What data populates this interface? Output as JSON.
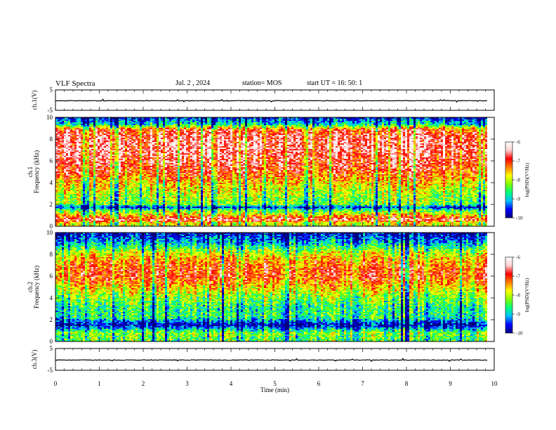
{
  "header": {
    "title": "VLF Spectra",
    "date": "Jul. 2 , 2024",
    "station": "station= MOS",
    "start": "start UT = 16: 50: 1"
  },
  "colorbar": {
    "label": "log(PSD)(V²/Hz)",
    "ticks": [
      "-6",
      "-7",
      "-8",
      "-9",
      "-10"
    ],
    "colors": [
      "#000080",
      "#0000ff",
      "#00bfff",
      "#00ff80",
      "#80ff00",
      "#ffff00",
      "#ff8000",
      "#ff0000",
      "#ffd0d0",
      "#ffffff"
    ]
  },
  "chart_data": [
    {
      "type": "line",
      "panel": "ch.1(V)",
      "ylabel": "ch.1(V)",
      "yticks": [
        "5",
        "-5"
      ],
      "ylim": [
        -5,
        5
      ],
      "x": [
        0,
        1,
        2,
        3,
        4,
        5,
        6,
        7,
        8,
        9,
        9.85
      ],
      "values": [
        -0.3,
        -0.3,
        -0.3,
        -0.3,
        -0.3,
        -0.3,
        -0.3,
        -0.3,
        -0.3,
        -0.3,
        -0.3
      ]
    },
    {
      "type": "heatmap",
      "panel": "ch.1 spectrogram",
      "ylabel": "ch.1 Frequency (kHz)",
      "ylabel_top": "ch.1",
      "ylabel_bottom": "Frequency (kHz)",
      "yticks": [
        "0",
        "2",
        "4",
        "6",
        "8",
        "10"
      ],
      "ylim": [
        0,
        10
      ],
      "xlim": [
        0,
        10
      ],
      "zlabel": "log(PSD)(V²/Hz)",
      "zlim": [
        -10,
        -6
      ],
      "profile_khz": [
        0.3,
        0.6,
        1.0,
        1.5,
        1.7,
        2.0,
        3.0,
        4.0,
        5.0,
        6.0,
        7.0,
        8.0,
        8.8,
        9.3,
        10
      ],
      "profile_log_psd": [
        -7.8,
        -6.6,
        -7.5,
        -8.5,
        -9.6,
        -8.3,
        -8.0,
        -7.6,
        -7.0,
        -6.8,
        -6.6,
        -6.6,
        -7.0,
        -8.8,
        -9.6
      ]
    },
    {
      "type": "heatmap",
      "panel": "ch.2 spectrogram",
      "ylabel": "ch.2 Frequency (kHz)",
      "ylabel_top": "ch.2",
      "ylabel_bottom": "Frequency (kHz)",
      "yticks": [
        "0",
        "2",
        "4",
        "6",
        "8",
        "10"
      ],
      "ylim": [
        0,
        10
      ],
      "xlim": [
        0,
        10
      ],
      "zlabel": "log(PSD)(V²/Hz)",
      "zlim": [
        -10,
        -6
      ],
      "profile_khz": [
        0.3,
        0.8,
        1.5,
        2.2,
        3.0,
        4.0,
        5.0,
        6.0,
        7.0,
        8.0,
        9.0,
        10
      ],
      "profile_log_psd": [
        -8.4,
        -8.2,
        -9.8,
        -8.6,
        -8.6,
        -8.2,
        -7.6,
        -7.0,
        -7.2,
        -7.8,
        -9.0,
        -9.8
      ]
    },
    {
      "type": "line",
      "panel": "ch.3(V)",
      "ylabel": "ch.3(V)",
      "yticks": [
        "5",
        "-5"
      ],
      "ylim": [
        -5,
        5
      ],
      "x": [
        0,
        1,
        2,
        3,
        4,
        5,
        6,
        7,
        8,
        9,
        9.85
      ],
      "values": [
        -0.3,
        -0.3,
        -0.3,
        -0.3,
        -0.3,
        -0.3,
        -0.3,
        -0.3,
        -0.3,
        -0.3,
        -0.3
      ]
    }
  ],
  "xaxis": {
    "label": "Time (min)",
    "ticks": [
      "0",
      "1",
      "2",
      "3",
      "4",
      "5",
      "6",
      "7",
      "8",
      "9",
      "10"
    ],
    "xlim": [
      0,
      10
    ]
  }
}
